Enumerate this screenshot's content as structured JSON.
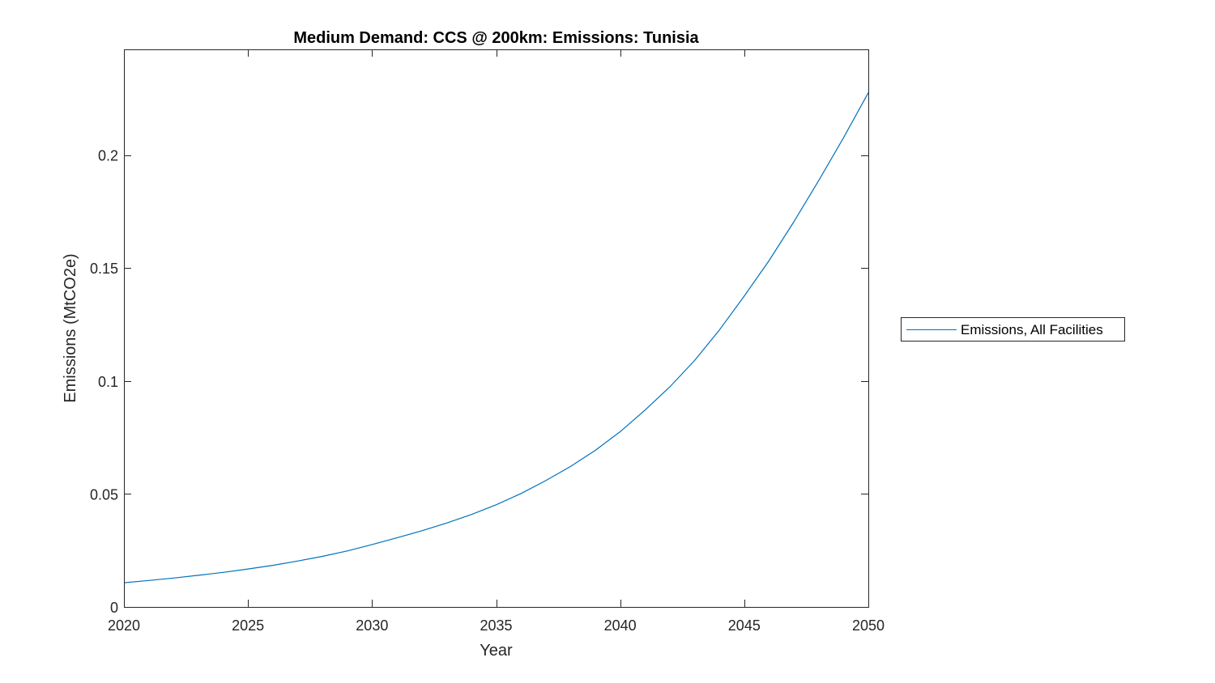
{
  "chart_data": {
    "type": "line",
    "title": "Medium Demand: CCS @ 200km: Emissions: Tunisia",
    "xlabel": "Year",
    "ylabel": "Emissions (MtCO2e)",
    "xlim": [
      2020,
      2050
    ],
    "ylim": [
      0,
      0.2468
    ],
    "x_ticks": [
      2020,
      2025,
      2030,
      2035,
      2040,
      2045,
      2050
    ],
    "x_tick_labels": [
      "2020",
      "2025",
      "2030",
      "2035",
      "2040",
      "2045",
      "2050"
    ],
    "y_ticks": [
      0,
      0.05,
      0.1,
      0.15,
      0.2
    ],
    "y_tick_labels": [
      "0",
      "0.05",
      "0.1",
      "0.15",
      "0.2"
    ],
    "grid": false,
    "legend_position": "outside-right",
    "series": [
      {
        "name": "Emissions, All Facilities",
        "color": "#0072BD",
        "x": [
          2020,
          2021,
          2022,
          2023,
          2024,
          2025,
          2026,
          2027,
          2028,
          2029,
          2030,
          2031,
          2032,
          2033,
          2034,
          2035,
          2036,
          2037,
          2038,
          2039,
          2040,
          2041,
          2042,
          2043,
          2044,
          2045,
          2046,
          2047,
          2048,
          2049,
          2050
        ],
        "y": [
          0.0107,
          0.0117,
          0.0128,
          0.014,
          0.0153,
          0.0168,
          0.0184,
          0.0203,
          0.0224,
          0.0248,
          0.0276,
          0.0306,
          0.0337,
          0.0371,
          0.0409,
          0.0452,
          0.0502,
          0.0559,
          0.0622,
          0.0693,
          0.0776,
          0.0871,
          0.0974,
          0.1091,
          0.1226,
          0.1376,
          0.1533,
          0.1705,
          0.1887,
          0.2077,
          0.2276
        ]
      }
    ]
  }
}
